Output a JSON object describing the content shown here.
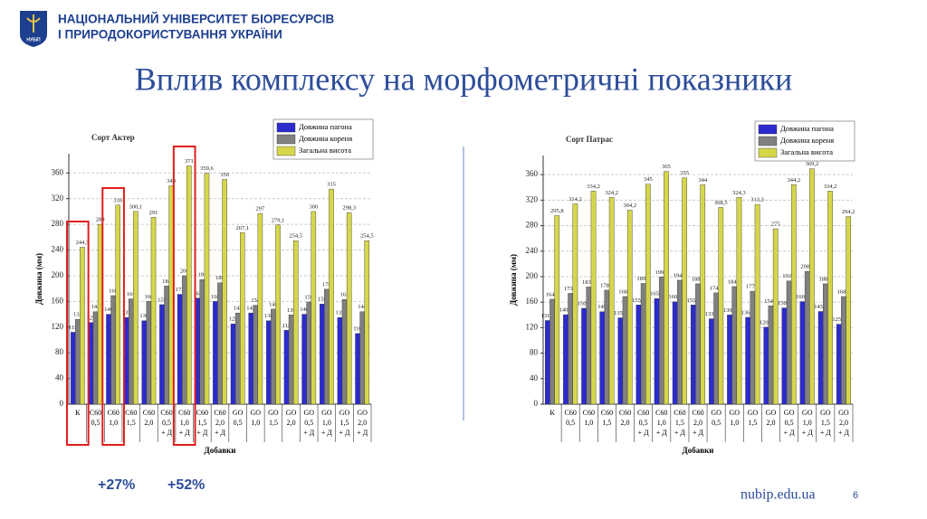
{
  "header": {
    "university": [
      "НАЦІОНАЛЬНИЙ УНІВЕРСИТЕТ БІОРЕСУРСІВ",
      "І ПРИРОДОКОРИСТУВАННЯ УКРАЇНИ"
    ],
    "logo_text": "НУБіП",
    "title": "Вплив комплексу на морфометричні показники"
  },
  "annotations": [
    "+27%",
    "+52%"
  ],
  "footer": {
    "site": "nubip.edu.ua",
    "page": "6"
  },
  "chart_data": [
    {
      "type": "bar",
      "title": "Сорт Актер",
      "x_label": "Добавки",
      "y_label": "Довжина (мм)",
      "categories": [
        [
          "К"
        ],
        [
          "С60",
          "0,5"
        ],
        [
          "С60",
          "1,0"
        ],
        [
          "С60",
          "1,5"
        ],
        [
          "С60",
          "2,0"
        ],
        [
          "С60",
          "0,5",
          "+ Д"
        ],
        [
          "С60",
          "1,0",
          "+ Д"
        ],
        [
          "С60",
          "1,5",
          "+ Д"
        ],
        [
          "С60",
          "2,0",
          "+ Д"
        ],
        [
          "GO",
          "0,5"
        ],
        [
          "GO",
          "1,0"
        ],
        [
          "GO",
          "1,5"
        ],
        [
          "GO",
          "2,0"
        ],
        [
          "GO",
          "0,5",
          "+ Д"
        ],
        [
          "GO",
          "1,0",
          "+ Д"
        ],
        [
          "GO",
          "1,5",
          "+ Д"
        ],
        [
          "GO",
          "2,0",
          "+ Д"
        ]
      ],
      "series": [
        {
          "name": "Довжина пагона",
          "color": "#2b2bd0",
          "values": [
            112,
            127,
            140,
            135,
            130,
            155,
            171,
            165,
            160,
            125,
            142,
            130,
            115,
            140,
            156,
            135,
            110
          ],
          "value_labels": [
            "112",
            "127",
            "140",
            "135",
            "130",
            "155",
            "171",
            "165",
            "160",
            "125",
            "142",
            "130",
            "115",
            "140",
            "156",
            "135",
            "110"
          ]
        },
        {
          "name": "Довжина кореня",
          "color": "#808080",
          "values": [
            132,
            144,
            169,
            164,
            160,
            184,
            200,
            194,
            189,
            142,
            154,
            148,
            139,
            159,
            179,
            163,
            144
          ],
          "value_labels": [
            "132",
            "144",
            "169",
            "164",
            "160",
            "184",
            "200",
            "194",
            "189",
            "142",
            "154",
            "148",
            "139",
            "159",
            "179",
            "163",
            "144"
          ]
        },
        {
          "name": "Загальна висота",
          "color": "#d6d64a",
          "values": [
            244.3,
            280,
            310,
            300.1,
            291,
            340,
            371,
            359.6,
            350,
            267.1,
            297,
            279.1,
            254.5,
            300,
            335,
            298.3,
            254.5
          ],
          "value_labels": [
            "244,3",
            "280",
            "310",
            "300,1",
            "291",
            "340",
            "371",
            "359,6",
            "350",
            "267,1",
            "297",
            "279,1",
            "254,5",
            "300",
            "335",
            "298,3",
            "254,5"
          ]
        }
      ],
      "ylim": [
        0,
        390
      ],
      "yticks": [
        0,
        40,
        80,
        120,
        160,
        200,
        240,
        280,
        320,
        360
      ],
      "grid": true,
      "legend": "upper right"
    },
    {
      "type": "bar",
      "title": "Сорт Патрас",
      "x_label": "Добавки",
      "y_label": "Довжина (мм)",
      "categories": [
        [
          "К"
        ],
        [
          "С60",
          "0,5"
        ],
        [
          "С60",
          "1,0"
        ],
        [
          "С60",
          "1,5"
        ],
        [
          "С60",
          "2,0"
        ],
        [
          "С60",
          "0,5",
          "+ Д"
        ],
        [
          "С60",
          "1,0",
          "+ Д"
        ],
        [
          "С60",
          "1,5",
          "+ Д"
        ],
        [
          "С60",
          "2,0",
          "+ Д"
        ],
        [
          "GO",
          "0,5"
        ],
        [
          "GO",
          "1,0"
        ],
        [
          "GO",
          "1,5"
        ],
        [
          "GO",
          "2,0"
        ],
        [
          "GO",
          "0,5",
          "+ Д"
        ],
        [
          "GO",
          "1,0",
          "+ Д"
        ],
        [
          "GO",
          "1,5",
          "+ Д"
        ],
        [
          "GO",
          "2,0",
          "+ Д"
        ]
      ],
      "series": [
        {
          "name": "Довжина пагона",
          "color": "#2b2bd0",
          "values": [
            131.2,
            140.4,
            150.4,
            145,
            135.4,
            155.6,
            165.6,
            160.6,
            155.6,
            133.9,
            139.9,
            136.2,
            120.8,
            150.9,
            160.9,
            145.4,
            125.4
          ],
          "value_labels": [
            "131,2",
            "140,4",
            "150,4",
            "145",
            "135,4",
            "155,6",
            "165,6",
            "160,6",
            "155,6",
            "133,9",
            "139,9",
            "136,2",
            "120,8",
            "150,9",
            "160,9",
            "145,4",
            "125,4"
          ]
        },
        {
          "name": "Довжина кореня",
          "color": "#808080",
          "values": [
            164.6,
            173.8,
            183.8,
            178.8,
            168.8,
            189.4,
            199.4,
            194.4,
            188.8,
            174.6,
            184.4,
            177.1,
            154.2,
            193.3,
            208.3,
            188.8,
            168.8
          ],
          "value_labels": [
            "164,6",
            "173,8",
            "183,8",
            "178,8",
            "168,8",
            "189,4",
            "199,4",
            "194,4",
            "188,8",
            "174,6",
            "184,4",
            "177,1",
            "154,2",
            "193,3",
            "208,3",
            "188,8",
            "168,8"
          ]
        },
        {
          "name": "Загальна висота",
          "color": "#d6d64a",
          "values": [
            295.8,
            314.2,
            334.2,
            324.2,
            304.2,
            345,
            365,
            355,
            344,
            308.5,
            324.3,
            313.3,
            275,
            344.2,
            369.2,
            334.2,
            294.2
          ],
          "value_labels": [
            "295,8",
            "314,2",
            "334,2",
            "324,2",
            "304,2",
            "345",
            "365",
            "355",
            "344",
            "308,5",
            "324,3",
            "313,3",
            "275",
            "344,2",
            "369,2",
            "334,2",
            "294,2"
          ]
        }
      ],
      "ylim": [
        0,
        390
      ],
      "yticks": [
        0,
        40,
        80,
        120,
        160,
        200,
        240,
        280,
        320,
        360
      ],
      "grid": true,
      "legend": "upper right"
    }
  ]
}
